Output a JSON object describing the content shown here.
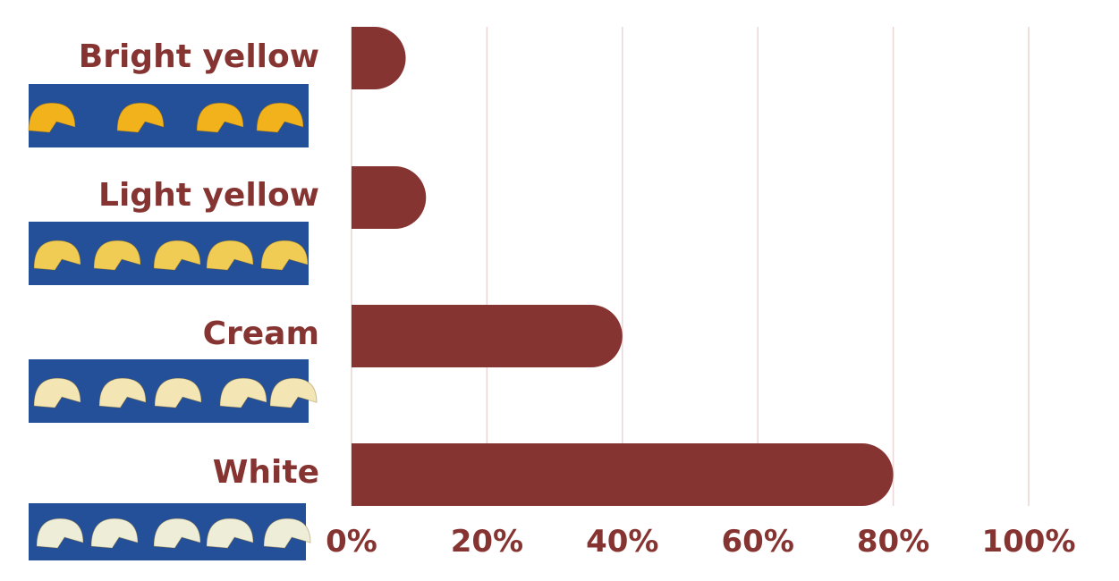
{
  "chart_data": {
    "type": "bar",
    "orientation": "horizontal",
    "categories": [
      "Bright yellow",
      "Light yellow",
      "Cream",
      "White"
    ],
    "values": [
      8,
      11,
      40,
      80
    ],
    "xlim": [
      0,
      100
    ],
    "xticks": [
      0,
      20,
      40,
      60,
      80,
      100
    ],
    "xtick_labels": [
      "0%",
      "20%",
      "40%",
      "60%",
      "80%",
      "100%"
    ],
    "title": "",
    "xlabel": "",
    "ylabel": "",
    "grid": true,
    "legend": "none",
    "category_images": "photo of cut pieces for each category",
    "colors": {
      "bar": "#863432",
      "text": "#863432",
      "grid": "#ead6d6",
      "photo_bg": "#24509a",
      "bright_yellow": "#f2b21c",
      "light_yellow": "#f0cc55",
      "cream": "#f3e6b4",
      "white": "#eeeed8"
    }
  }
}
